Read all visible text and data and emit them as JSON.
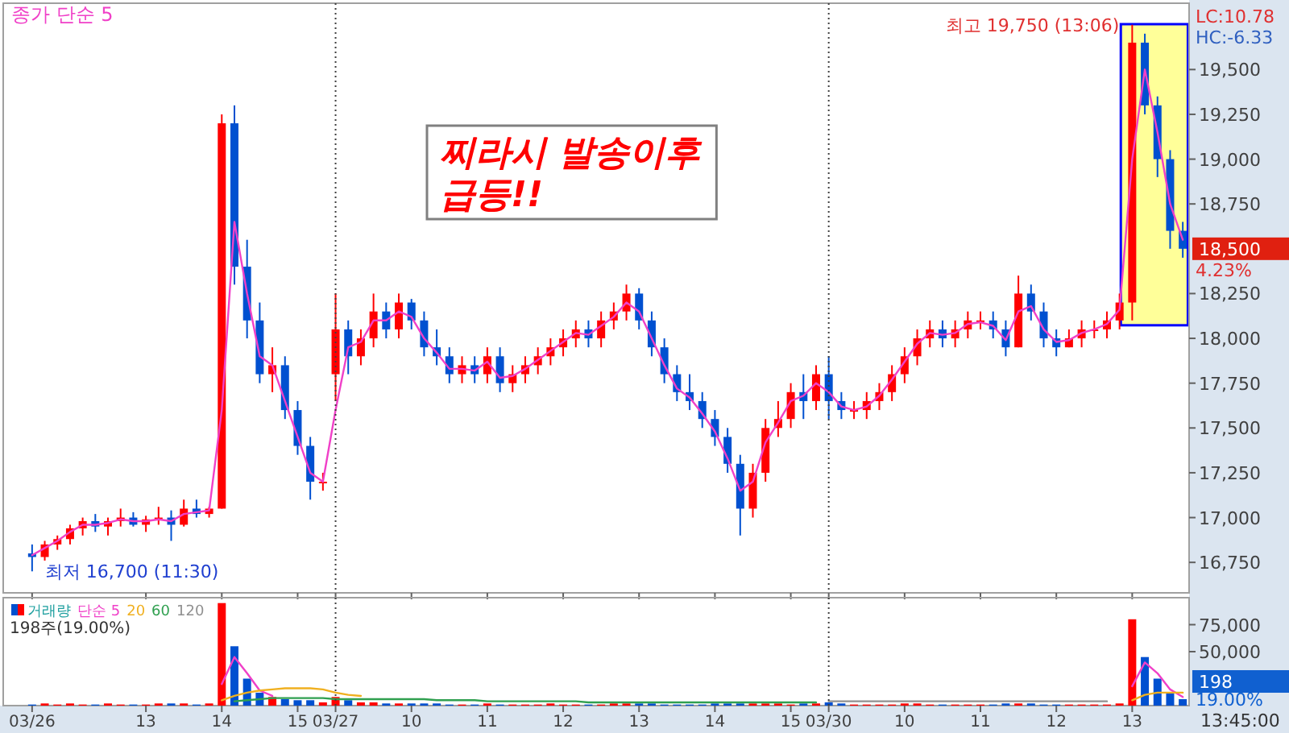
{
  "chart_data": [
    {
      "type": "candlestick",
      "legend": "top left",
      "tick_labels": "y",
      "categories": [
        "03/26",
        null,
        null,
        null,
        null,
        null,
        null,
        null,
        null,
        "13",
        null,
        null,
        null,
        null,
        null,
        "14",
        null,
        null,
        null,
        null,
        null,
        "15",
        null,
        null,
        "03/27",
        null,
        null,
        null,
        null,
        null,
        "10",
        null,
        null,
        null,
        null,
        null,
        "11",
        null,
        null,
        null,
        null,
        null,
        "12",
        null,
        null,
        null,
        null,
        null,
        "13",
        null,
        null,
        null,
        null,
        null,
        "14",
        null,
        null,
        null,
        null,
        null,
        "15",
        null,
        null,
        "03/30",
        null,
        null,
        null,
        null,
        null,
        "10",
        null,
        null,
        null,
        null,
        null,
        "11",
        null,
        null,
        null,
        null,
        null,
        "12",
        null,
        null,
        null,
        null,
        null,
        "13",
        null,
        null,
        null,
        null
      ],
      "ylim": [
        16580,
        19870
      ],
      "yticks": [
        {
          "value": 16750,
          "label": "16,750"
        },
        {
          "value": 17000,
          "label": "17,000"
        },
        {
          "value": 17250,
          "label": "17,250"
        },
        {
          "value": 17500,
          "label": "17,500"
        },
        {
          "value": 17750,
          "label": "17,750"
        },
        {
          "value": 18000,
          "label": "18,000"
        },
        {
          "value": 18250,
          "label": "18,250"
        },
        {
          "value": 18750,
          "label": "18,750"
        },
        {
          "value": 19000,
          "label": "19,000"
        },
        {
          "value": 19250,
          "label": "19,250"
        },
        {
          "value": 19500,
          "label": "19,500"
        }
      ],
      "colors": [
        "#0050d0",
        "#ff0000",
        "#ff0000",
        "#ff0000",
        "#ff0000",
        "#0050d0",
        "#ff0000",
        "#ff0000",
        "#0050d0",
        "#ff0000",
        "#ff0000",
        "#0050d0",
        "#ff0000",
        "#0050d0",
        "#ff0000",
        "#ff0000",
        "#0050d0",
        "#0050d0",
        "#0050d0",
        "#ff0000",
        "#0050d0",
        "#0050d0",
        "#0050d0",
        "#ff0000",
        "#ff0000",
        "#0050d0",
        "#ff0000",
        "#ff0000",
        "#0050d0",
        "#ff0000",
        "#0050d0",
        "#0050d0",
        "#0050d0",
        "#0050d0",
        "#ff0000",
        "#0050d0",
        "#ff0000",
        "#0050d0",
        "#ff0000",
        "#ff0000",
        "#ff0000",
        "#ff0000",
        "#ff0000",
        "#ff0000",
        "#0050d0",
        "#ff0000",
        "#ff0000",
        "#ff0000",
        "#0050d0",
        "#0050d0",
        "#0050d0",
        "#0050d0",
        "#0050d0",
        "#0050d0",
        "#0050d0",
        "#0050d0",
        "#0050d0",
        "#ff0000",
        "#ff0000",
        "#ff0000",
        "#ff0000",
        "#0050d0",
        "#ff0000",
        "#0050d0",
        "#0050d0",
        "#ff0000",
        "#ff0000",
        "#ff0000",
        "#ff0000",
        "#ff0000",
        "#ff0000",
        "#ff0000",
        "#0050d0",
        "#ff0000",
        "#ff0000",
        "#ff0000",
        "#0050d0",
        "#0050d0",
        "#ff0000",
        "#0050d0",
        "#0050d0",
        "#0050d0",
        "#ff0000",
        "#ff0000",
        "#ff0000",
        "#ff0000",
        "#ff0000",
        "#ff0000",
        "#0050d0",
        "#0050d0",
        "#0050d0",
        "#0050d0"
      ],
      "ohlc": [
        [
          16800,
          16850,
          16700,
          16780
        ],
        [
          16780,
          16870,
          16760,
          16850
        ],
        [
          16850,
          16900,
          16820,
          16880
        ],
        [
          16880,
          16960,
          16850,
          16940
        ],
        [
          16940,
          17000,
          16900,
          16980
        ],
        [
          16980,
          17020,
          16920,
          16950
        ],
        [
          16950,
          17000,
          16900,
          16980
        ],
        [
          16980,
          17050,
          16950,
          17000
        ],
        [
          17000,
          17030,
          16950,
          16960
        ],
        [
          16960,
          17010,
          16920,
          16990
        ],
        [
          16990,
          17060,
          16960,
          17000
        ],
        [
          17000,
          17040,
          16870,
          16960
        ],
        [
          16960,
          17100,
          16950,
          17050
        ],
        [
          17050,
          17100,
          17000,
          17020
        ],
        [
          17020,
          17060,
          17000,
          17050
        ],
        [
          17050,
          19250,
          17050,
          19200
        ],
        [
          19200,
          19300,
          18300,
          18400
        ],
        [
          18400,
          18550,
          18000,
          18100
        ],
        [
          18100,
          18200,
          17750,
          17800
        ],
        [
          17800,
          17950,
          17700,
          17850
        ],
        [
          17850,
          17900,
          17550,
          17600
        ],
        [
          17600,
          17650,
          17350,
          17400
        ],
        [
          17400,
          17450,
          17100,
          17200
        ],
        [
          17200,
          17250,
          17150,
          17200
        ],
        [
          17800,
          18250,
          17650,
          18050
        ],
        [
          18050,
          18100,
          17800,
          17900
        ],
        [
          17900,
          18050,
          17850,
          18000
        ],
        [
          18000,
          18250,
          17950,
          18150
        ],
        [
          18150,
          18200,
          18000,
          18050
        ],
        [
          18050,
          18250,
          18000,
          18200
        ],
        [
          18200,
          18220,
          18050,
          18100
        ],
        [
          18100,
          18150,
          17900,
          17950
        ],
        [
          17950,
          18050,
          17850,
          17900
        ],
        [
          17900,
          17950,
          17750,
          17800
        ],
        [
          17800,
          17900,
          17750,
          17850
        ],
        [
          17850,
          17900,
          17750,
          17800
        ],
        [
          17800,
          17950,
          17750,
          17900
        ],
        [
          17900,
          17950,
          17700,
          17750
        ],
        [
          17750,
          17850,
          17700,
          17800
        ],
        [
          17800,
          17900,
          17750,
          17850
        ],
        [
          17850,
          17950,
          17800,
          17900
        ],
        [
          17900,
          18000,
          17850,
          17950
        ],
        [
          17950,
          18050,
          17900,
          18000
        ],
        [
          18000,
          18100,
          17950,
          18050
        ],
        [
          18050,
          18100,
          17950,
          18000
        ],
        [
          18000,
          18150,
          17950,
          18100
        ],
        [
          18100,
          18200,
          18050,
          18150
        ],
        [
          18150,
          18300,
          18100,
          18250
        ],
        [
          18250,
          18280,
          18050,
          18100
        ],
        [
          18100,
          18150,
          17900,
          17950
        ],
        [
          17950,
          18000,
          17750,
          17800
        ],
        [
          17800,
          17850,
          17650,
          17700
        ],
        [
          17700,
          17800,
          17600,
          17650
        ],
        [
          17650,
          17700,
          17500,
          17550
        ],
        [
          17550,
          17600,
          17400,
          17450
        ],
        [
          17450,
          17500,
          17250,
          17300
        ],
        [
          17300,
          17350,
          16900,
          17050
        ],
        [
          17050,
          17300,
          17000,
          17250
        ],
        [
          17250,
          17550,
          17200,
          17500
        ],
        [
          17500,
          17650,
          17450,
          17550
        ],
        [
          17550,
          17750,
          17500,
          17700
        ],
        [
          17700,
          17800,
          17550,
          17650
        ],
        [
          17650,
          17850,
          17600,
          17800
        ],
        [
          17800,
          17900,
          17550,
          17650
        ],
        [
          17650,
          17700,
          17550,
          17600
        ],
        [
          17600,
          17650,
          17550,
          17600
        ],
        [
          17600,
          17700,
          17550,
          17650
        ],
        [
          17650,
          17750,
          17600,
          17700
        ],
        [
          17700,
          17850,
          17650,
          17800
        ],
        [
          17800,
          17950,
          17750,
          17900
        ],
        [
          17900,
          18050,
          17850,
          18000
        ],
        [
          18000,
          18100,
          17950,
          18050
        ],
        [
          18050,
          18100,
          17950,
          18000
        ],
        [
          18000,
          18100,
          17950,
          18050
        ],
        [
          18050,
          18150,
          18000,
          18100
        ],
        [
          18100,
          18150,
          18050,
          18100
        ],
        [
          18100,
          18150,
          18000,
          18050
        ],
        [
          18050,
          18100,
          17900,
          17950
        ],
        [
          17950,
          18350,
          17950,
          18250
        ],
        [
          18250,
          18300,
          18100,
          18150
        ],
        [
          18150,
          18200,
          17950,
          18000
        ],
        [
          18000,
          18050,
          17900,
          17950
        ],
        [
          17950,
          18050,
          17950,
          18000
        ],
        [
          18000,
          18100,
          17950,
          18050
        ],
        [
          18050,
          18100,
          18000,
          18050
        ],
        [
          18050,
          18150,
          18000,
          18100
        ],
        [
          18100,
          18250,
          18050,
          18200
        ],
        [
          18200,
          19750,
          18100,
          19650
        ],
        [
          19650,
          19700,
          19250,
          19300
        ],
        [
          19300,
          19350,
          18900,
          19000
        ],
        [
          19000,
          19050,
          18500,
          18600
        ],
        [
          18600,
          18650,
          18450,
          18500
        ]
      ],
      "series": [
        {
          "name": "종가 단순 5",
          "type": "line",
          "color": "#f040c8",
          "values": [
            16790,
            16830,
            16870,
            16920,
            16960,
            16960,
            16970,
            16990,
            16980,
            16980,
            16990,
            16980,
            17020,
            17030,
            17040,
            17600,
            18650,
            18250,
            17900,
            17850,
            17650,
            17450,
            17250,
            17200,
            17600,
            17950,
            17980,
            18100,
            18100,
            18150,
            18120,
            18000,
            17920,
            17830,
            17830,
            17820,
            17870,
            17780,
            17790,
            17830,
            17880,
            17930,
            17980,
            18030,
            18020,
            18070,
            18120,
            18200,
            18150,
            18000,
            17850,
            17720,
            17670,
            17580,
            17480,
            17330,
            17150,
            17200,
            17420,
            17530,
            17650,
            17680,
            17750,
            17700,
            17620,
            17600,
            17620,
            17680,
            17770,
            17870,
            17970,
            18030,
            18020,
            18030,
            18080,
            18090,
            18070,
            17990,
            18150,
            18180,
            18050,
            17980,
            17990,
            18030,
            18050,
            18080,
            18160,
            19000,
            19500,
            19150,
            18750,
            18550
          ]
        }
      ],
      "ref_lines": [
        {
          "axis": "x",
          "value": "03/27",
          "color": "#404040",
          "line_style": "dotted"
        },
        {
          "axis": "x",
          "value": "03/30",
          "color": "#404040",
          "line_style": "dotted"
        }
      ],
      "annotations": [
        "LC:10.78",
        "HC:-6.33",
        "18,500",
        "4.23%",
        "찌라시 발송이후\n급등!!",
        "최고 19,750 (13:06)",
        "최저 16,700 (11:30)"
      ]
    },
    {
      "type": "bar",
      "legend": "top left",
      "categories": [
        "03/26",
        null,
        null,
        null,
        null,
        null,
        null,
        null,
        null,
        "13",
        null,
        null,
        null,
        null,
        null,
        "14",
        null,
        null,
        null,
        null,
        null,
        "15",
        null,
        null,
        "03/27",
        null,
        null,
        null,
        null,
        null,
        "10",
        null,
        null,
        null,
        null,
        null,
        "11",
        null,
        null,
        null,
        null,
        null,
        "12",
        null,
        null,
        null,
        null,
        null,
        "13",
        null,
        null,
        null,
        null,
        null,
        "14",
        null,
        null,
        null,
        null,
        null,
        "15",
        null,
        null,
        "03/30",
        null,
        null,
        null,
        null,
        null,
        "10",
        null,
        null,
        null,
        null,
        null,
        "11",
        null,
        null,
        null,
        null,
        null,
        "12",
        null,
        null,
        null,
        null,
        null,
        "13",
        null,
        null,
        null,
        null
      ],
      "ylim": [
        0,
        100000
      ],
      "yticks": [
        {
          "value": 50000,
          "label": "50,000"
        },
        {
          "value": 75000,
          "label": "75,000"
        }
      ],
      "series": [
        {
          "name": "거래량",
          "type": "bar",
          "color": "#20a0a0",
          "colors": [
            "#0050d0",
            "#ff0000",
            "#ff0000",
            "#ff0000",
            "#ff0000",
            "#0050d0",
            "#ff0000",
            "#ff0000",
            "#0050d0",
            "#ff0000",
            "#ff0000",
            "#0050d0",
            "#ff0000",
            "#0050d0",
            "#ff0000",
            "#ff0000",
            "#0050d0",
            "#0050d0",
            "#0050d0",
            "#ff0000",
            "#0050d0",
            "#0050d0",
            "#0050d0",
            "#ff0000",
            "#ff0000",
            "#0050d0",
            "#ff0000",
            "#ff0000",
            "#0050d0",
            "#ff0000",
            "#0050d0",
            "#0050d0",
            "#0050d0",
            "#0050d0",
            "#ff0000",
            "#0050d0",
            "#ff0000",
            "#0050d0",
            "#ff0000",
            "#ff0000",
            "#ff0000",
            "#ff0000",
            "#ff0000",
            "#ff0000",
            "#0050d0",
            "#ff0000",
            "#ff0000",
            "#ff0000",
            "#0050d0",
            "#0050d0",
            "#0050d0",
            "#0050d0",
            "#0050d0",
            "#0050d0",
            "#0050d0",
            "#0050d0",
            "#0050d0",
            "#ff0000",
            "#ff0000",
            "#ff0000",
            "#ff0000",
            "#0050d0",
            "#ff0000",
            "#0050d0",
            "#0050d0",
            "#ff0000",
            "#ff0000",
            "#ff0000",
            "#ff0000",
            "#ff0000",
            "#ff0000",
            "#ff0000",
            "#0050d0",
            "#ff0000",
            "#ff0000",
            "#ff0000",
            "#0050d0",
            "#0050d0",
            "#ff0000",
            "#0050d0",
            "#0050d0",
            "#0050d0",
            "#ff0000",
            "#ff0000",
            "#ff0000",
            "#ff0000",
            "#ff0000",
            "#ff0000",
            "#0050d0",
            "#0050d0",
            "#0050d0",
            "#0050d0"
          ],
          "values": [
            1000,
            2000,
            1000,
            2000,
            1000,
            1000,
            2000,
            1000,
            1000,
            1000,
            2000,
            2000,
            2000,
            1000,
            2000,
            95000,
            55000,
            25000,
            12000,
            8000,
            6000,
            5000,
            5000,
            3000,
            8000,
            5000,
            3000,
            3000,
            2000,
            2000,
            2000,
            2000,
            2000,
            1000,
            1000,
            1000,
            2000,
            1000,
            1000,
            1000,
            1000,
            2000,
            1000,
            1000,
            1000,
            1000,
            2000,
            2000,
            2000,
            2000,
            1000,
            1000,
            1000,
            1000,
            2000,
            2000,
            2000,
            2000,
            2000,
            2000,
            1000,
            2000,
            2000,
            3000,
            2000,
            1000,
            1000,
            1000,
            1000,
            2000,
            2000,
            1000,
            1000,
            1000,
            1000,
            1000,
            1000,
            2000,
            2000,
            2000,
            1000,
            1000,
            1000,
            1000,
            1000,
            1000,
            2000,
            80000,
            45000,
            25000,
            12000,
            6000
          ]
        },
        {
          "name": "단순 5",
          "type": "line",
          "color": "#f040c8",
          "values": [
            null,
            null,
            null,
            null,
            null,
            null,
            null,
            null,
            null,
            null,
            null,
            null,
            null,
            null,
            null,
            20000,
            45000,
            30000,
            14000,
            9000,
            null,
            null,
            null,
            null,
            null,
            null,
            null,
            null,
            null,
            null,
            null,
            null,
            null,
            null,
            null,
            null,
            null,
            null,
            null,
            null,
            null,
            null,
            null,
            null,
            null,
            null,
            null,
            null,
            null,
            null,
            null,
            null,
            null,
            null,
            null,
            null,
            null,
            null,
            null,
            null,
            null,
            null,
            null,
            null,
            null,
            null,
            null,
            null,
            null,
            null,
            null,
            null,
            null,
            null,
            null,
            null,
            null,
            null,
            null,
            null,
            null,
            null,
            null,
            null,
            null,
            null,
            null,
            18000,
            40000,
            30000,
            15000,
            8000
          ]
        },
        {
          "name": "20",
          "type": "line",
          "color": "#f0b020",
          "values": [
            null,
            null,
            null,
            null,
            null,
            null,
            null,
            null,
            null,
            null,
            null,
            null,
            null,
            null,
            null,
            5000,
            9000,
            12000,
            14000,
            15000,
            16000,
            16000,
            16000,
            15000,
            12000,
            10000,
            9000,
            null,
            null,
            null,
            null,
            null,
            null,
            null,
            null,
            null,
            null,
            null,
            null,
            null,
            null,
            null,
            null,
            null,
            null,
            null,
            null,
            null,
            null,
            null,
            null,
            null,
            null,
            null,
            null,
            null,
            null,
            null,
            null,
            null,
            null,
            null,
            null,
            null,
            null,
            null,
            null,
            null,
            null,
            null,
            null,
            null,
            null,
            null,
            null,
            null,
            null,
            null,
            null,
            null,
            null,
            null,
            null,
            null,
            null,
            null,
            null,
            5000,
            10000,
            12000,
            12000,
            12000
          ]
        },
        {
          "name": "60",
          "type": "line",
          "color": "#30a050",
          "values": [
            null,
            null,
            null,
            null,
            null,
            null,
            null,
            null,
            null,
            null,
            null,
            null,
            null,
            null,
            null,
            null,
            4000,
            5000,
            6000,
            7000,
            7000,
            7000,
            7000,
            7000,
            6000,
            6000,
            6000,
            6000,
            6000,
            6000,
            6000,
            6000,
            5000,
            5000,
            5000,
            5000,
            4000,
            4000,
            4000,
            4000,
            4000,
            4000,
            4000,
            4000,
            3000,
            3000,
            3000,
            3000,
            3000,
            3000,
            3000,
            3000,
            3000,
            3000,
            3000,
            3000,
            3000,
            3000,
            3000,
            3000,
            3000,
            3000,
            3000,
            null,
            null,
            null,
            null,
            null,
            null,
            null,
            null,
            null,
            null,
            null,
            null,
            null,
            null,
            null,
            null,
            null,
            null,
            null,
            null,
            null,
            null,
            null,
            null,
            null,
            null,
            null,
            null,
            null
          ]
        },
        {
          "name": "120",
          "type": "line",
          "color": "#909090",
          "values": [
            null,
            null,
            null,
            null,
            null,
            null,
            null,
            null,
            null,
            null,
            null,
            null,
            null,
            null,
            null,
            null,
            null,
            null,
            null,
            null,
            null,
            null,
            null,
            null,
            null,
            null,
            null,
            null,
            null,
            null,
            null,
            null,
            null,
            null,
            null,
            null,
            null,
            null,
            null,
            null,
            null,
            null,
            null,
            null,
            null,
            null,
            null,
            null,
            null,
            null,
            null,
            null,
            null,
            null,
            null,
            null,
            null,
            null,
            null,
            null,
            null,
            null,
            null,
            4000,
            4000,
            4000,
            4000,
            4000,
            4000,
            4000,
            4000,
            4000,
            4000,
            4000,
            4000,
            4000,
            4000,
            4000,
            4000,
            4000,
            4000,
            4000,
            4000,
            4000,
            4000,
            4000,
            null,
            null,
            null,
            null,
            null,
            null
          ]
        }
      ],
      "ref_lines": [
        {
          "axis": "x",
          "value": "03/27",
          "color": "#404040",
          "line_style": "dotted"
        },
        {
          "axis": "x",
          "value": "03/30",
          "color": "#404040",
          "line_style": "dotted"
        }
      ],
      "annotations": [
        "198주(19.00%)",
        "198",
        "19.00%",
        "13:45:00"
      ]
    }
  ]
}
